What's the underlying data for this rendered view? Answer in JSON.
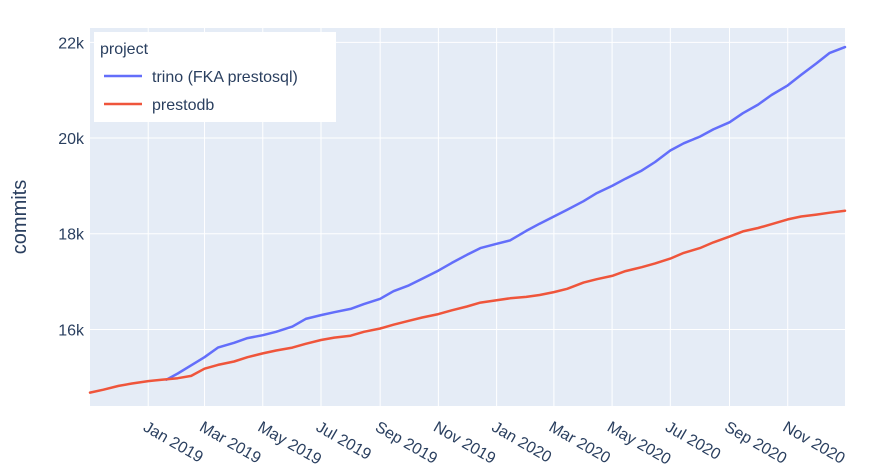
{
  "chart_data": {
    "type": "line",
    "title": "",
    "xlabel": "",
    "ylabel": "commits",
    "x_range": [
      "2018-11-01",
      "2020-12-31"
    ],
    "ylim": [
      14400,
      22300
    ],
    "y_ticks": [
      16000,
      18000,
      20000,
      22000
    ],
    "y_tick_labels": [
      "16k",
      "18k",
      "20k",
      "22k"
    ],
    "x_ticks": [
      "2019-01-01",
      "2019-03-01",
      "2019-05-01",
      "2019-07-01",
      "2019-09-01",
      "2019-11-01",
      "2020-01-01",
      "2020-03-01",
      "2020-05-01",
      "2020-07-01",
      "2020-09-01",
      "2020-11-01"
    ],
    "x_tick_labels": [
      "Jan 2019",
      "Mar 2019",
      "May 2019",
      "Jul 2019",
      "Sep 2019",
      "Nov 2019",
      "Jan 2020",
      "Mar 2020",
      "May 2020",
      "Jul 2020",
      "Sep 2020",
      "Nov 2020"
    ],
    "grid": true,
    "legend": {
      "title": "project",
      "placement": "top-left"
    },
    "series": [
      {
        "name": "trino (FKA prestosql)",
        "color": "#636efa",
        "x": [
          "2019-01-20",
          "2019-02-01",
          "2019-02-15",
          "2019-03-01",
          "2019-03-15",
          "2019-04-01",
          "2019-04-15",
          "2019-05-01",
          "2019-05-15",
          "2019-06-01",
          "2019-06-15",
          "2019-07-01",
          "2019-07-15",
          "2019-08-01",
          "2019-08-15",
          "2019-09-01",
          "2019-09-15",
          "2019-10-01",
          "2019-10-15",
          "2019-11-01",
          "2019-11-15",
          "2019-12-01",
          "2019-12-15",
          "2020-01-01",
          "2020-01-15",
          "2020-02-01",
          "2020-02-15",
          "2020-03-01",
          "2020-03-15",
          "2020-04-01",
          "2020-04-15",
          "2020-05-01",
          "2020-05-15",
          "2020-06-01",
          "2020-06-15",
          "2020-07-01",
          "2020-07-15",
          "2020-08-01",
          "2020-08-15",
          "2020-09-01",
          "2020-09-15",
          "2020-10-01",
          "2020-10-15",
          "2020-11-01",
          "2020-11-15",
          "2020-12-01",
          "2020-12-15",
          "2020-12-31"
        ],
        "y": [
          14950,
          15080,
          15250,
          15420,
          15620,
          15720,
          15820,
          15880,
          15950,
          16060,
          16220,
          16300,
          16360,
          16430,
          16530,
          16640,
          16800,
          16920,
          17060,
          17230,
          17390,
          17560,
          17700,
          17790,
          17860,
          18060,
          18210,
          18360,
          18500,
          18680,
          18850,
          19000,
          19150,
          19320,
          19500,
          19740,
          19890,
          20030,
          20180,
          20330,
          20520,
          20700,
          20900,
          21100,
          21320,
          21560,
          21780,
          21900
        ]
      },
      {
        "name": "prestodb",
        "color": "#ef553b",
        "x": [
          "2018-11-01",
          "2018-11-15",
          "2018-12-01",
          "2018-12-15",
          "2019-01-01",
          "2019-01-15",
          "2019-02-01",
          "2019-02-15",
          "2019-03-01",
          "2019-03-15",
          "2019-04-01",
          "2019-04-15",
          "2019-05-01",
          "2019-05-15",
          "2019-06-01",
          "2019-06-15",
          "2019-07-01",
          "2019-07-15",
          "2019-08-01",
          "2019-08-15",
          "2019-09-01",
          "2019-09-15",
          "2019-10-01",
          "2019-10-15",
          "2019-11-01",
          "2019-11-15",
          "2019-12-01",
          "2019-12-15",
          "2020-01-01",
          "2020-01-15",
          "2020-02-01",
          "2020-02-15",
          "2020-03-01",
          "2020-03-15",
          "2020-04-01",
          "2020-04-15",
          "2020-05-01",
          "2020-05-15",
          "2020-06-01",
          "2020-06-15",
          "2020-07-01",
          "2020-07-15",
          "2020-08-01",
          "2020-08-15",
          "2020-09-01",
          "2020-09-15",
          "2020-10-01",
          "2020-10-15",
          "2020-11-01",
          "2020-11-15",
          "2020-12-01",
          "2020-12-15",
          "2020-12-31"
        ],
        "y": [
          14680,
          14740,
          14820,
          14870,
          14920,
          14950,
          14980,
          15030,
          15180,
          15260,
          15330,
          15420,
          15500,
          15560,
          15620,
          15700,
          15780,
          15830,
          15870,
          15950,
          16020,
          16100,
          16180,
          16250,
          16320,
          16400,
          16480,
          16560,
          16610,
          16650,
          16680,
          16720,
          16780,
          16850,
          16980,
          17050,
          17120,
          17220,
          17300,
          17380,
          17480,
          17600,
          17700,
          17820,
          17940,
          18050,
          18120,
          18200,
          18300,
          18360,
          18400,
          18440,
          18480
        ]
      }
    ]
  }
}
